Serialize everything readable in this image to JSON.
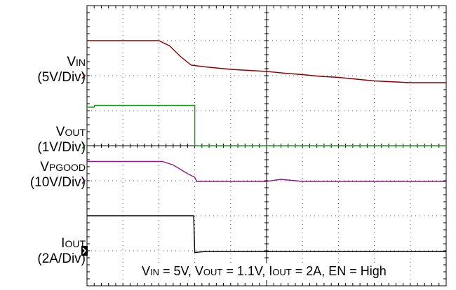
{
  "chart_data": {
    "type": "line",
    "grid": true,
    "xlim": [
      0,
      10
    ],
    "ylim": [
      0,
      8
    ],
    "series": [
      {
        "key": "vin",
        "label_main": "V",
        "label_sub": "IN",
        "scale": "(5V/Div)",
        "color": "#8b0000",
        "marker_level": 6,
        "x": [
          0,
          2.0,
          2.3,
          2.6,
          2.9,
          3.3,
          4.0,
          5.0,
          5.5,
          6.0,
          6.5,
          7.0,
          7.5,
          8.0,
          9.0,
          10.0
        ],
        "y": [
          7.0,
          7.0,
          6.85,
          6.55,
          6.3,
          6.25,
          6.18,
          6.12,
          6.07,
          6.03,
          5.98,
          5.95,
          5.9,
          5.85,
          5.8,
          5.8
        ]
      },
      {
        "key": "vout",
        "label_main": "V",
        "label_sub": "OUT",
        "scale": "(1V/Div)",
        "color": "#1a9a1a",
        "marker_level": 4,
        "x": [
          0,
          0.2,
          0.21,
          3.0,
          3.0,
          10.0
        ],
        "y": [
          5.1,
          5.1,
          5.15,
          5.15,
          4.0,
          4.0
        ]
      },
      {
        "key": "vpgood",
        "label_main": "V",
        "label_sub": "PGOOD",
        "scale": "(10V/Div)",
        "color": "#8a1a8a",
        "marker_level": 3,
        "x": [
          0,
          2.1,
          2.4,
          2.8,
          3.0,
          3.05,
          4.0,
          5.0,
          5.4,
          6.0,
          7.0,
          10.0
        ],
        "y": [
          3.55,
          3.55,
          3.45,
          3.2,
          3.1,
          2.98,
          2.98,
          2.98,
          3.04,
          2.98,
          2.98,
          2.98
        ]
      },
      {
        "key": "iout",
        "label_main": "I",
        "label_sub": "OUT",
        "scale": "(2A/Div)",
        "color": "#000000",
        "marker_level": 1,
        "x": [
          0,
          2.95,
          2.97,
          3.0,
          3.3,
          10.0
        ],
        "y": [
          2.0,
          2.0,
          2.0,
          0.95,
          0.98,
          0.98
        ]
      }
    ],
    "caption": {
      "p1": "V",
      "s1": "IN",
      "t1": " = 5V, V",
      "s2": "OUT",
      "t2": " = 1.1V, I",
      "s3": "OUT",
      "t3": " = 2A, EN = High"
    }
  }
}
